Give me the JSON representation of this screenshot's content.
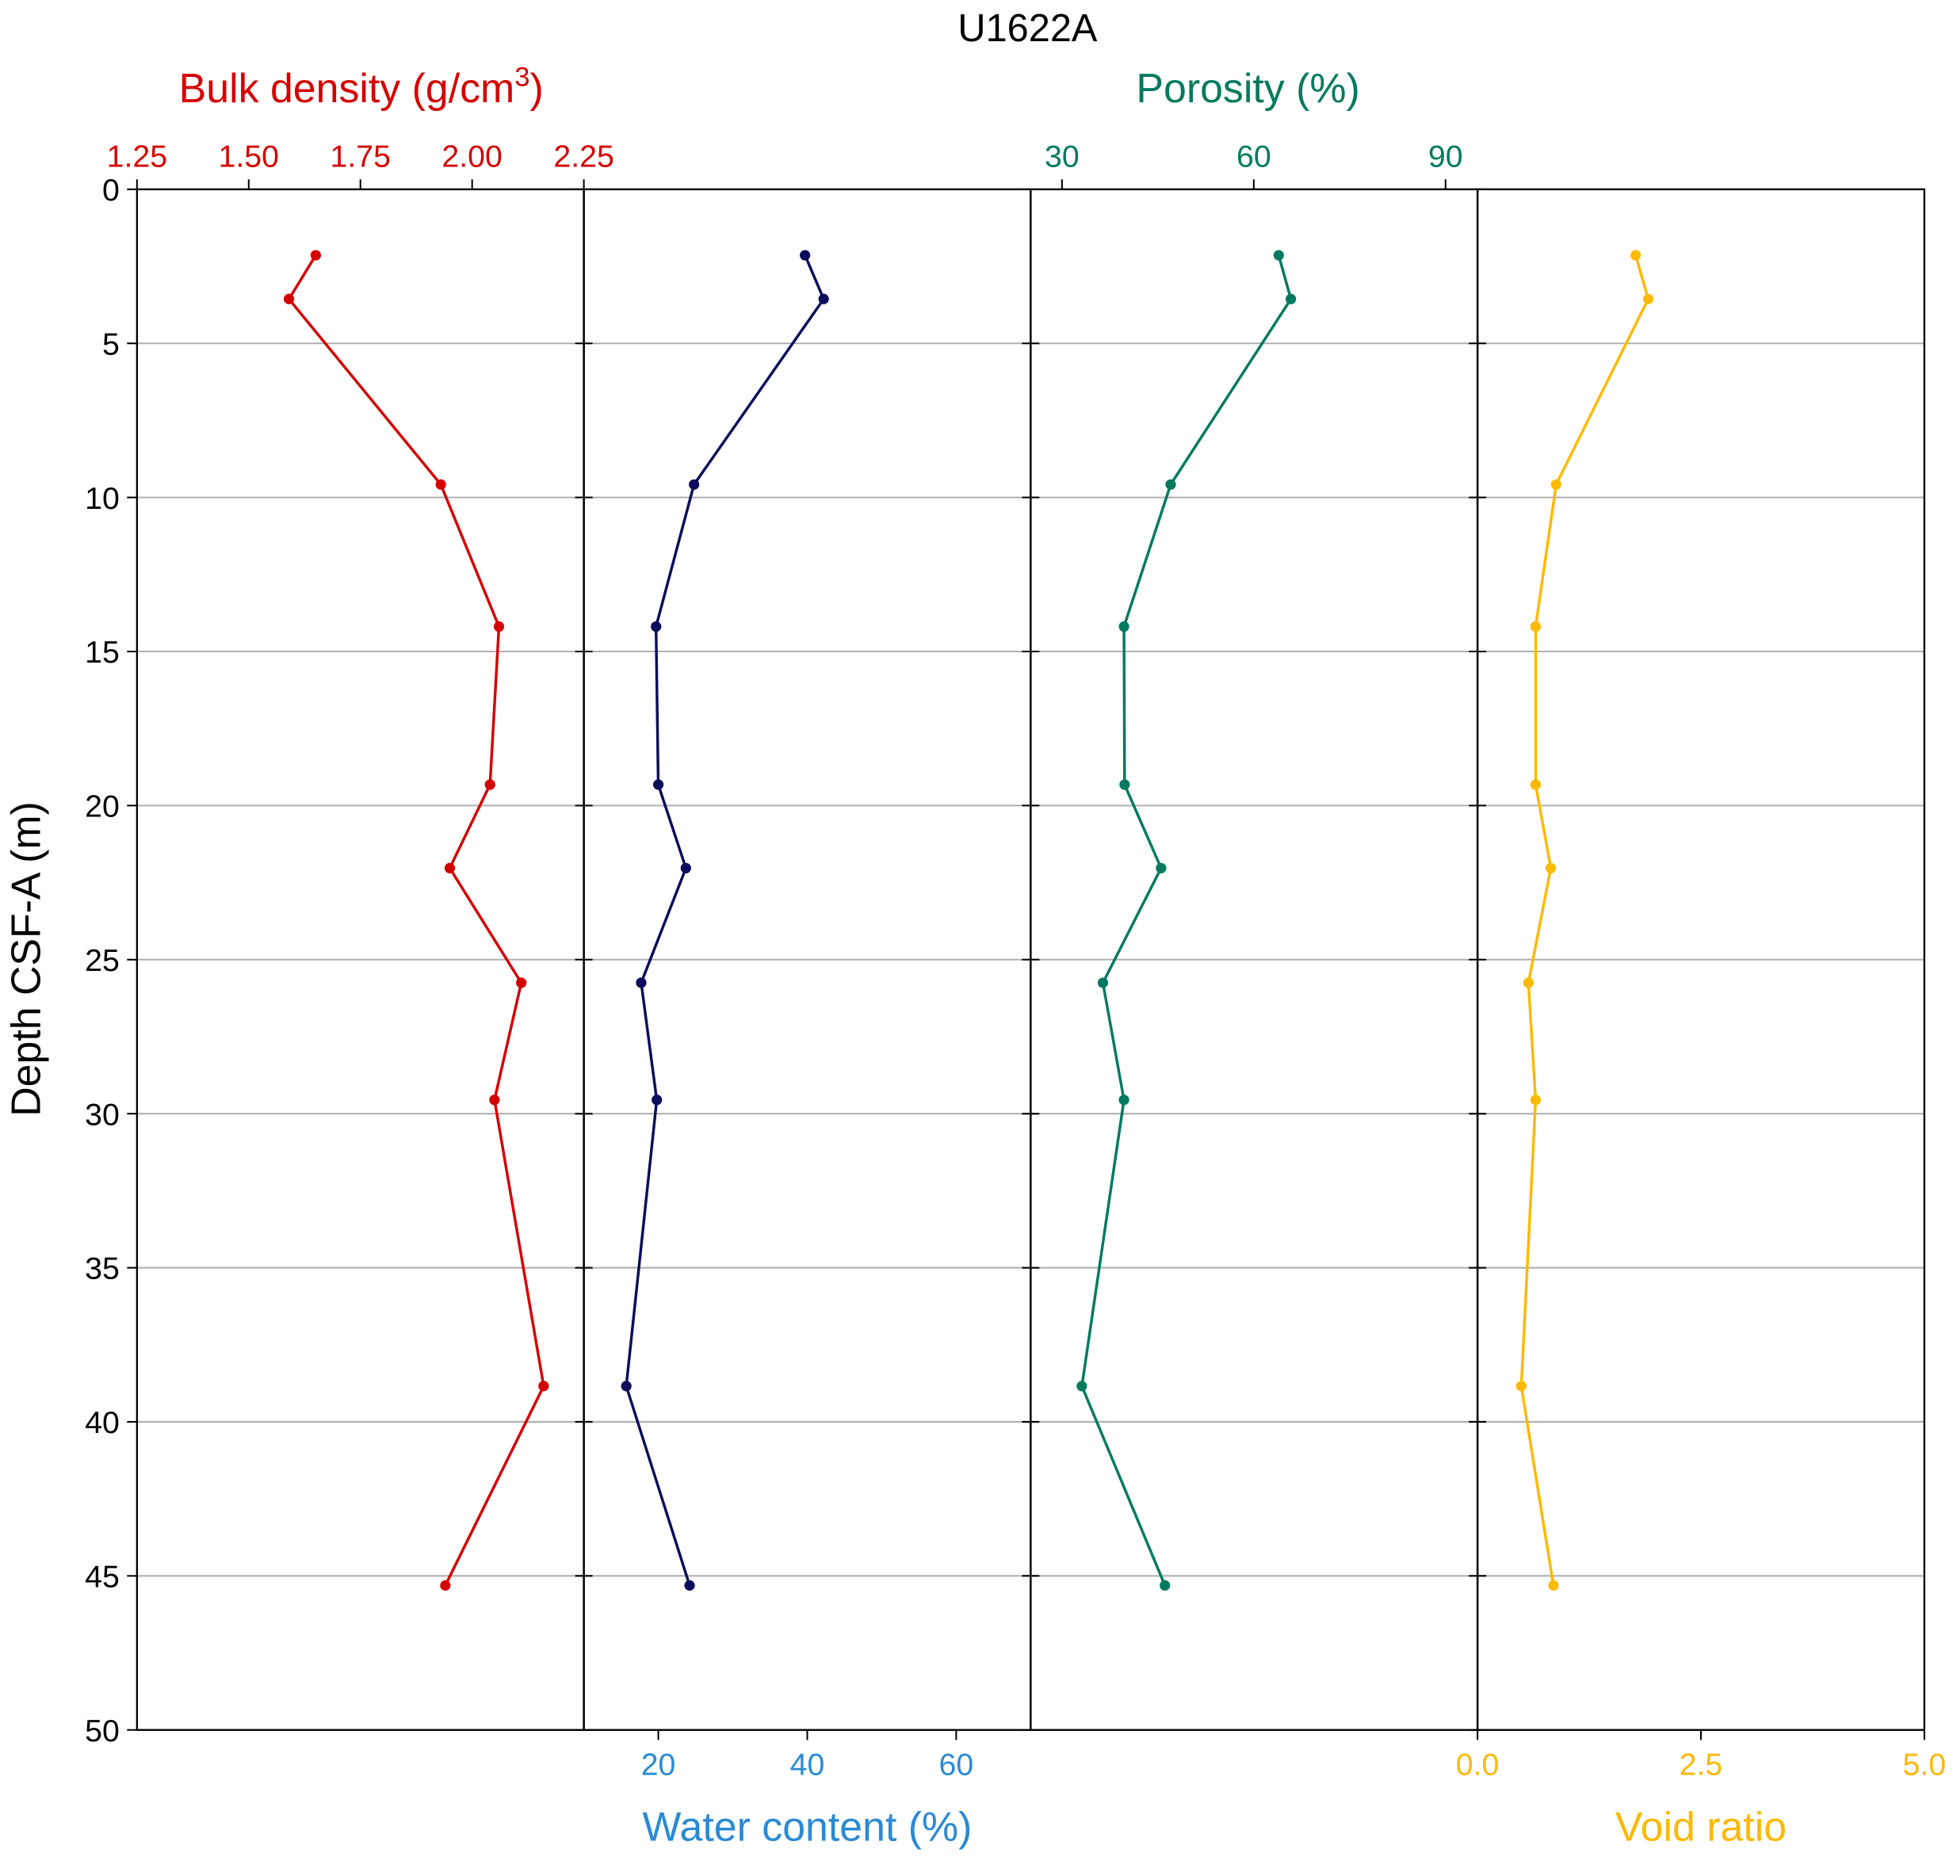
{
  "chart_data": {
    "type": "line",
    "title": "U1622A",
    "ylabel": "Depth CSF-A (m)",
    "ylim": [
      0,
      50
    ],
    "y_inverted": true,
    "yticks": [
      0,
      5,
      10,
      15,
      20,
      25,
      30,
      35,
      40,
      45,
      50
    ],
    "grid": true,
    "depth": [
      2.14,
      3.56,
      9.58,
      14.19,
      19.32,
      22.03,
      25.75,
      29.55,
      38.84,
      45.31
    ],
    "panels": [
      {
        "name": "Bulk density",
        "label": "Bulk density (g/cm",
        "label_sup": "3",
        "label_end": ")",
        "axis": "top",
        "color": "#d40000",
        "label_color": "#d40000",
        "xlim": [
          1.25,
          2.25
        ],
        "xticks": [
          1.25,
          1.5,
          1.75,
          2.0,
          2.25
        ],
        "xtick_labels": [
          "1.25",
          "1.50",
          "1.75",
          "2.00",
          "2.25"
        ],
        "values": [
          1.65,
          1.59,
          1.93,
          2.06,
          2.04,
          1.95,
          2.11,
          2.05,
          2.16,
          1.94
        ]
      },
      {
        "name": "Water content",
        "label": "Water content (%)",
        "axis": "bottom",
        "color": "#0c0c5c",
        "label_color": "#2a8ad4",
        "xlim": [
          10,
          70
        ],
        "xticks": [
          20,
          40,
          60
        ],
        "xtick_labels": [
          "20",
          "40",
          "60"
        ],
        "values": [
          39.7,
          42.2,
          24.8,
          19.7,
          20.0,
          23.7,
          17.7,
          19.8,
          15.7,
          24.2
        ]
      },
      {
        "name": "Porosity",
        "label": "Porosity (%)",
        "axis": "top",
        "color": "#007a5e",
        "label_color": "#007a5e",
        "xlim": [
          25.1,
          95
        ],
        "xticks": [
          30,
          60,
          90
        ],
        "xtick_labels": [
          "30",
          "60",
          "90"
        ],
        "values": [
          63.9,
          65.8,
          47.0,
          39.7,
          39.8,
          45.5,
          36.4,
          39.7,
          33.1,
          46.1
        ]
      },
      {
        "name": "Void ratio",
        "label": "Void ratio",
        "axis": "bottom",
        "color": "#ffb900",
        "label_color": "#ffb900",
        "xlim": [
          0,
          5
        ],
        "xticks": [
          0,
          2.5,
          5
        ],
        "xtick_labels": [
          "0.0",
          "2.5",
          "5.0"
        ],
        "values": [
          1.77,
          1.91,
          0.88,
          0.65,
          0.65,
          0.82,
          0.57,
          0.65,
          0.49,
          0.85
        ]
      }
    ]
  }
}
